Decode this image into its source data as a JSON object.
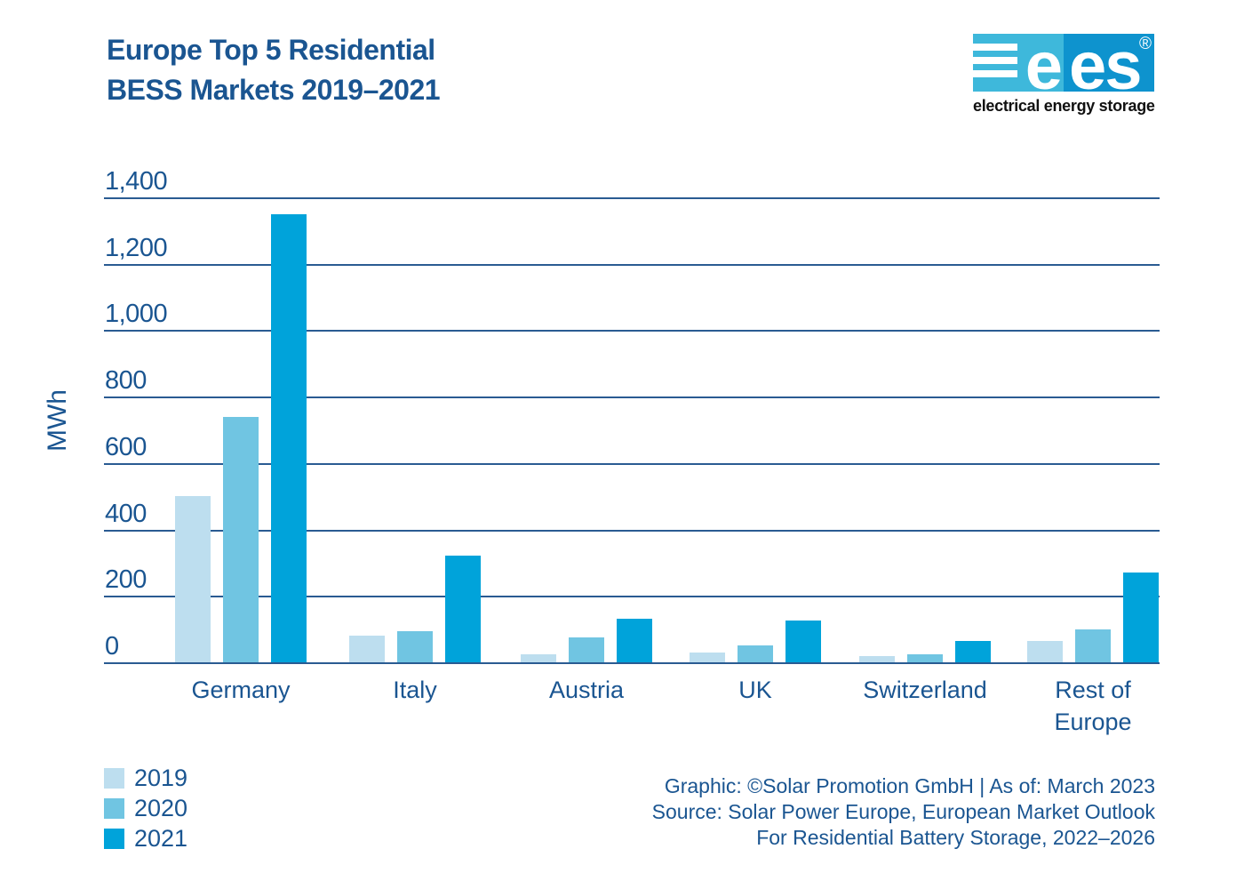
{
  "header": {
    "title_line1": "Europe Top 5 Residential",
    "title_line2": "BESS Markets 2019–2021"
  },
  "logo": {
    "left_text": "e",
    "right_text": "es",
    "registered_mark": "®",
    "caption": "electrical energy storage",
    "left_block_color": "#3EB8DB",
    "right_block_color": "#0E93CE"
  },
  "chart_data": {
    "type": "bar",
    "title": "Europe Top 5 Residential BESS Markets 2019–2021",
    "xlabel": "",
    "ylabel": "MWh",
    "ylim": [
      0,
      1400
    ],
    "grid": "horizontal gridlines",
    "legend_position": "bottom-left",
    "yticks": [
      {
        "v": 0,
        "label": "0"
      },
      {
        "v": 200,
        "label": "200"
      },
      {
        "v": 400,
        "label": "400"
      },
      {
        "v": 600,
        "label": "600"
      },
      {
        "v": 800,
        "label": "800"
      },
      {
        "v": 1000,
        "label": "1,000"
      },
      {
        "v": 1200,
        "label": "1,200"
      },
      {
        "v": 1400,
        "label": "1,400"
      }
    ],
    "categories": [
      "Germany",
      "Italy",
      "Austria",
      "UK",
      "Switzerland",
      "Rest of Europe"
    ],
    "series": [
      {
        "name": "2019",
        "color": "#BDDEEF",
        "values": [
          500,
          80,
          25,
          30,
          20,
          65
        ]
      },
      {
        "name": "2020",
        "color": "#70C5E2",
        "values": [
          740,
          95,
          75,
          50,
          25,
          100
        ]
      },
      {
        "name": "2021",
        "color": "#00A3DA",
        "values": [
          1350,
          320,
          130,
          125,
          65,
          270
        ]
      }
    ],
    "unit": "MWh"
  },
  "footer": {
    "line1": "Graphic: ©Solar Promotion GmbH | As of: March 2023",
    "line2": "Source: Solar Power Europe, European Market Outlook",
    "line3": "For Residential Battery Storage, 2022–2026"
  },
  "colors": {
    "text_blue": "#1A5591",
    "gridline": "#2A5B92"
  }
}
